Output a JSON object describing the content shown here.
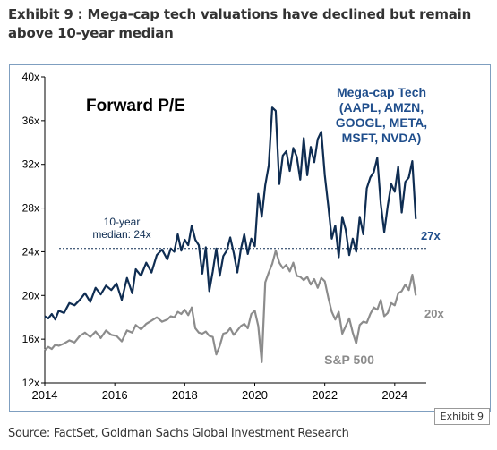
{
  "header": {
    "title": "Exhibit 9 : Mega-cap tech valuations have declined but remain above 10-year median"
  },
  "footer": {
    "source": "Source: FactSet, Goldman Sachs Global Investment Research",
    "badge": "Exhibit 9"
  },
  "chart_data": {
    "type": "line",
    "title": "Forward P/E",
    "xlabel": "",
    "ylabel": "",
    "x_ticks": [
      "2014",
      "2016",
      "2018",
      "2020",
      "2022",
      "2024"
    ],
    "y_ticks": [
      "12x",
      "16x",
      "20x",
      "24x",
      "28x",
      "32x",
      "36x",
      "40x"
    ],
    "xlim": [
      2014,
      2024.9
    ],
    "ylim": [
      12,
      40
    ],
    "grid": false,
    "reference_line": {
      "label_line1": "10-year",
      "label_line2": "median: 24x",
      "value": 24.3
    },
    "series_label_lines": [
      "Mega-cap Tech",
      "(AAPL,  AMZN,",
      "GOOGL, META,",
      "MSFT, NVDA)"
    ],
    "end_labels": {
      "tech": "27x",
      "sp500": "20x"
    },
    "colors": {
      "tech": "#0f2d52",
      "sp500": "#8c8c8c",
      "median": "#0f2d52",
      "series_label": "#1f4e8c",
      "axis": "#000000",
      "frame": "#7f9fc0"
    },
    "series": [
      {
        "name": "Mega-cap Tech",
        "x": [
          2014.0,
          2014.1,
          2014.2,
          2014.3,
          2014.4,
          2014.55,
          2014.7,
          2014.85,
          2015.0,
          2015.15,
          2015.3,
          2015.45,
          2015.6,
          2015.75,
          2015.9,
          2016.05,
          2016.2,
          2016.35,
          2016.5,
          2016.6,
          2016.75,
          2016.9,
          2017.05,
          2017.2,
          2017.35,
          2017.5,
          2017.6,
          2017.7,
          2017.8,
          2017.9,
          2018.0,
          2018.1,
          2018.2,
          2018.3,
          2018.4,
          2018.5,
          2018.6,
          2018.7,
          2018.8,
          2018.9,
          2019.0,
          2019.1,
          2019.2,
          2019.3,
          2019.4,
          2019.5,
          2019.6,
          2019.7,
          2019.8,
          2019.9,
          2020.0,
          2020.1,
          2020.2,
          2020.3,
          2020.4,
          2020.5,
          2020.6,
          2020.7,
          2020.8,
          2020.9,
          2021.0,
          2021.1,
          2021.2,
          2021.3,
          2021.4,
          2021.5,
          2021.6,
          2021.7,
          2021.8,
          2021.9,
          2022.0,
          2022.1,
          2022.2,
          2022.3,
          2022.4,
          2022.5,
          2022.6,
          2022.7,
          2022.8,
          2022.9,
          2023.0,
          2023.1,
          2023.2,
          2023.3,
          2023.4,
          2023.5,
          2023.6,
          2023.7,
          2023.8,
          2023.9,
          2024.0,
          2024.1,
          2024.2,
          2024.3,
          2024.4,
          2024.5,
          2024.6
        ],
        "values": [
          18.1,
          17.9,
          18.3,
          17.8,
          18.6,
          18.4,
          19.3,
          19.1,
          19.6,
          20.2,
          19.4,
          20.7,
          20.1,
          20.9,
          20.5,
          21.1,
          19.6,
          21.6,
          20.2,
          22.4,
          21.8,
          23.0,
          22.1,
          23.7,
          24.2,
          23.3,
          24.3,
          24.0,
          25.6,
          24.1,
          25.1,
          24.6,
          26.4,
          25.1,
          24.6,
          22.0,
          24.4,
          20.4,
          22.2,
          24.3,
          21.8,
          23.6,
          24.1,
          25.3,
          23.9,
          22.1,
          24.2,
          25.6,
          23.8,
          25.2,
          24.5,
          29.3,
          27.2,
          30.1,
          31.9,
          37.2,
          36.9,
          30.2,
          32.8,
          33.2,
          31.4,
          33.5,
          32.7,
          30.6,
          34.4,
          31.0,
          33.6,
          32.2,
          34.3,
          35.0,
          31.0,
          28.2,
          25.2,
          26.4,
          23.5,
          27.2,
          26.0,
          23.7,
          25.2,
          24.0,
          27.2,
          25.6,
          29.8,
          30.8,
          31.3,
          32.6,
          28.4,
          25.8,
          28.2,
          30.2,
          29.5,
          31.8,
          27.6,
          30.4,
          30.8,
          32.3,
          27.0
        ]
      },
      {
        "name": "S&P 500",
        "x": [
          2014.0,
          2014.1,
          2014.2,
          2014.3,
          2014.4,
          2014.55,
          2014.7,
          2014.85,
          2015.0,
          2015.15,
          2015.3,
          2015.45,
          2015.6,
          2015.75,
          2015.9,
          2016.05,
          2016.2,
          2016.35,
          2016.5,
          2016.6,
          2016.75,
          2016.9,
          2017.05,
          2017.2,
          2017.35,
          2017.5,
          2017.6,
          2017.7,
          2017.8,
          2017.9,
          2018.0,
          2018.1,
          2018.2,
          2018.3,
          2018.4,
          2018.5,
          2018.6,
          2018.7,
          2018.8,
          2018.9,
          2019.0,
          2019.1,
          2019.2,
          2019.3,
          2019.4,
          2019.5,
          2019.6,
          2019.7,
          2019.8,
          2019.9,
          2020.0,
          2020.1,
          2020.2,
          2020.3,
          2020.4,
          2020.5,
          2020.6,
          2020.7,
          2020.8,
          2020.9,
          2021.0,
          2021.1,
          2021.2,
          2021.3,
          2021.4,
          2021.5,
          2021.6,
          2021.7,
          2021.8,
          2021.9,
          2022.0,
          2022.1,
          2022.2,
          2022.3,
          2022.4,
          2022.5,
          2022.6,
          2022.7,
          2022.8,
          2022.9,
          2023.0,
          2023.1,
          2023.2,
          2023.3,
          2023.4,
          2023.5,
          2023.6,
          2023.7,
          2023.8,
          2023.9,
          2024.0,
          2024.1,
          2024.2,
          2024.3,
          2024.4,
          2024.5,
          2024.6
        ],
        "values": [
          15.0,
          15.3,
          15.1,
          15.5,
          15.4,
          15.6,
          15.9,
          15.7,
          16.3,
          16.6,
          16.2,
          16.7,
          16.1,
          16.8,
          16.4,
          16.3,
          15.8,
          16.8,
          16.6,
          17.3,
          16.9,
          17.4,
          17.7,
          18.0,
          17.6,
          17.8,
          18.1,
          18.0,
          18.5,
          18.3,
          18.7,
          18.2,
          18.9,
          17.0,
          16.6,
          16.5,
          16.7,
          16.3,
          16.2,
          14.6,
          15.4,
          16.5,
          16.6,
          17.0,
          16.4,
          16.8,
          17.2,
          17.4,
          17.0,
          18.3,
          18.6,
          17.2,
          13.9,
          21.2,
          22.1,
          22.9,
          24.1,
          23.0,
          22.5,
          22.8,
          22.2,
          23.0,
          21.8,
          21.7,
          21.4,
          21.7,
          21.0,
          21.5,
          20.7,
          21.6,
          21.3,
          19.8,
          18.5,
          17.8,
          18.5,
          16.5,
          17.2,
          17.9,
          16.6,
          15.6,
          17.3,
          17.6,
          17.5,
          18.3,
          18.9,
          18.7,
          19.6,
          18.1,
          18.4,
          19.3,
          19.1,
          20.2,
          20.4,
          21.0,
          20.5,
          21.9,
          20.0
        ]
      }
    ]
  }
}
